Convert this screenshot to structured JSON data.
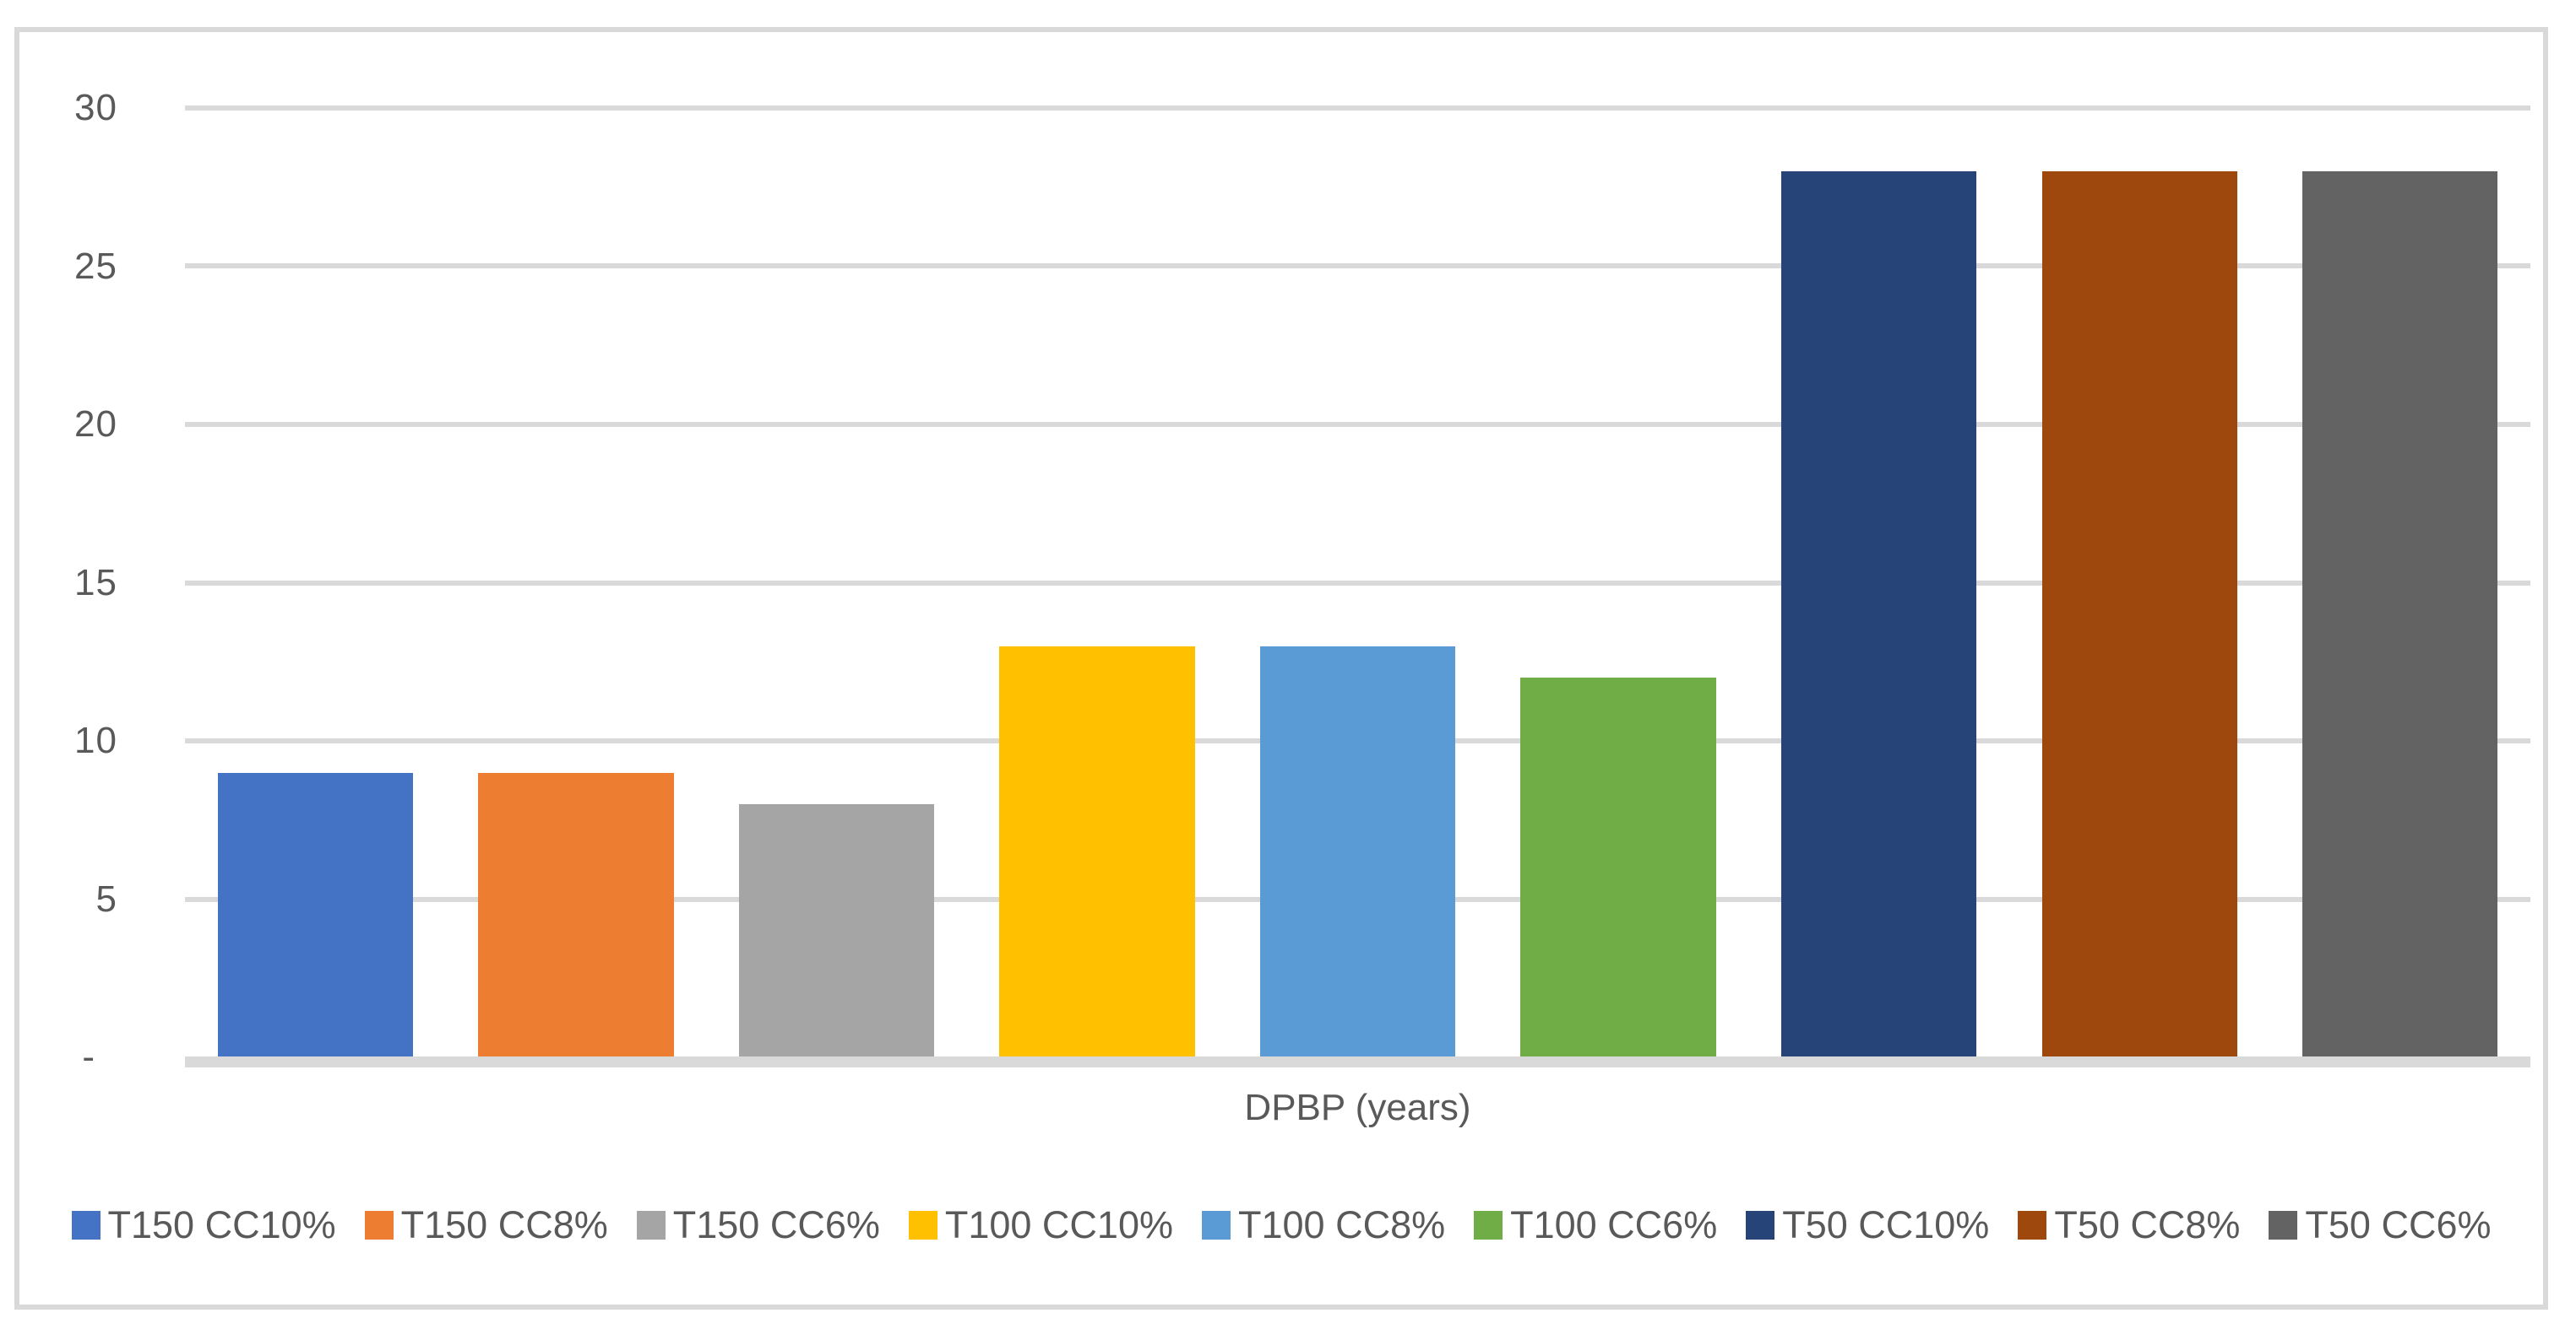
{
  "chart_data": {
    "type": "bar",
    "title": "",
    "xlabel": "DPBP (years)",
    "ylabel": "",
    "ylim": [
      0,
      30
    ],
    "grid": true,
    "legend_position": "bottom",
    "yticks": [
      {
        "value": 0,
        "label": "-"
      },
      {
        "value": 5,
        "label": "5"
      },
      {
        "value": 10,
        "label": "10"
      },
      {
        "value": 15,
        "label": "15"
      },
      {
        "value": 20,
        "label": "20"
      },
      {
        "value": 25,
        "label": "25"
      },
      {
        "value": 30,
        "label": "30"
      }
    ],
    "categories": [
      "T150 CC10%",
      "T150 CC8%",
      "T150 CC6%",
      "T100 CC10%",
      "T100 CC8%",
      "T100 CC6%",
      "T50 CC10%",
      "T50 CC8%",
      "T50 CC6%"
    ],
    "values": [
      9,
      9,
      8,
      13,
      13,
      12,
      28,
      28,
      28
    ],
    "series": [
      {
        "name": "T150 CC10%",
        "value": 9,
        "color": "#4472C4"
      },
      {
        "name": "T150 CC8%",
        "value": 9,
        "color": "#ED7D31"
      },
      {
        "name": "T150 CC6%",
        "value": 8,
        "color": "#A5A5A5"
      },
      {
        "name": "T100 CC10%",
        "value": 13,
        "color": "#FFC000"
      },
      {
        "name": "T100 CC8%",
        "value": 13,
        "color": "#5B9BD5"
      },
      {
        "name": "T100 CC6%",
        "value": 12,
        "color": "#70AD47"
      },
      {
        "name": "T50 CC10%",
        "value": 28,
        "color": "#264478"
      },
      {
        "name": "T50 CC8%",
        "value": 28,
        "color": "#9E480E"
      },
      {
        "name": "T50 CC6%",
        "value": 28,
        "color": "#636363"
      }
    ]
  },
  "style_colors": {
    "axis_text": "#595959",
    "gridline": "#D9D9D9",
    "frame_border": "#D9D9D9",
    "background": "#FFFFFF"
  }
}
